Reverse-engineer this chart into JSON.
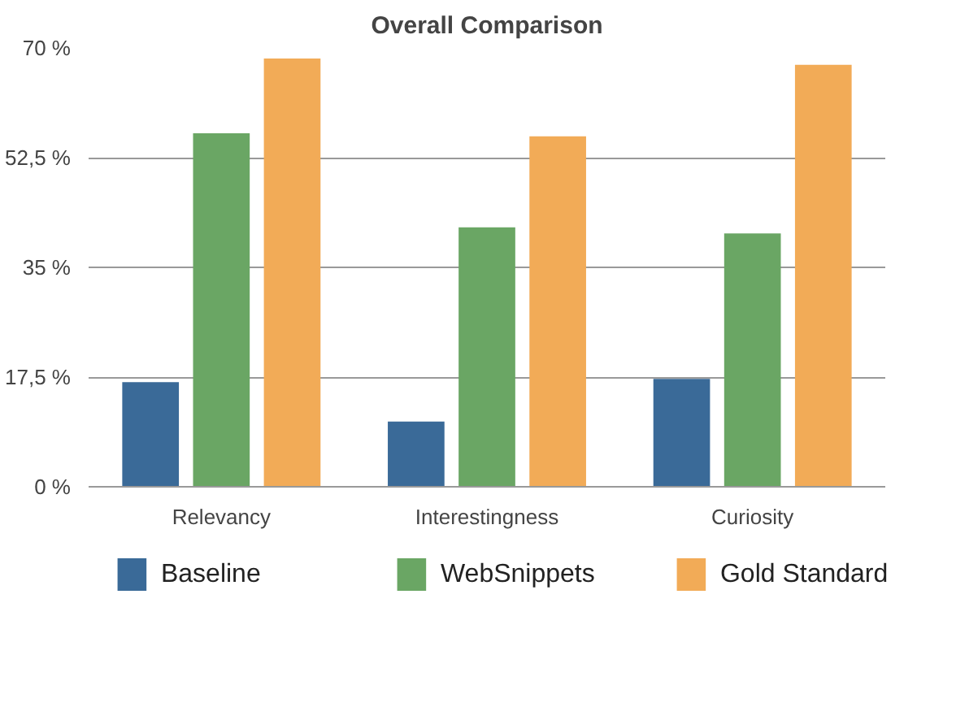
{
  "chart_data": {
    "type": "bar",
    "title": "Overall Comparison",
    "categories": [
      "Relevancy",
      "Interestingness",
      "Curiosity"
    ],
    "series": [
      {
        "name": "Baseline",
        "color": "#3a6a98",
        "values": [
          16.7,
          10.4,
          17.2
        ]
      },
      {
        "name": "WebSnippets",
        "color": "#6aa664",
        "values": [
          56.4,
          41.4,
          40.4
        ]
      },
      {
        "name": "Gold Standard",
        "color": "#f2ab57",
        "values": [
          68.3,
          55.9,
          67.3
        ]
      }
    ],
    "ylim": [
      0,
      70
    ],
    "yticks": [
      {
        "value": 0,
        "label": "0 %"
      },
      {
        "value": 17.5,
        "label": "17,5 %"
      },
      {
        "value": 35,
        "label": "35 %"
      },
      {
        "value": 52.5,
        "label": "52,5 %"
      },
      {
        "value": 70,
        "label": "70 %"
      }
    ],
    "grid": "y",
    "legend": "bottom"
  }
}
